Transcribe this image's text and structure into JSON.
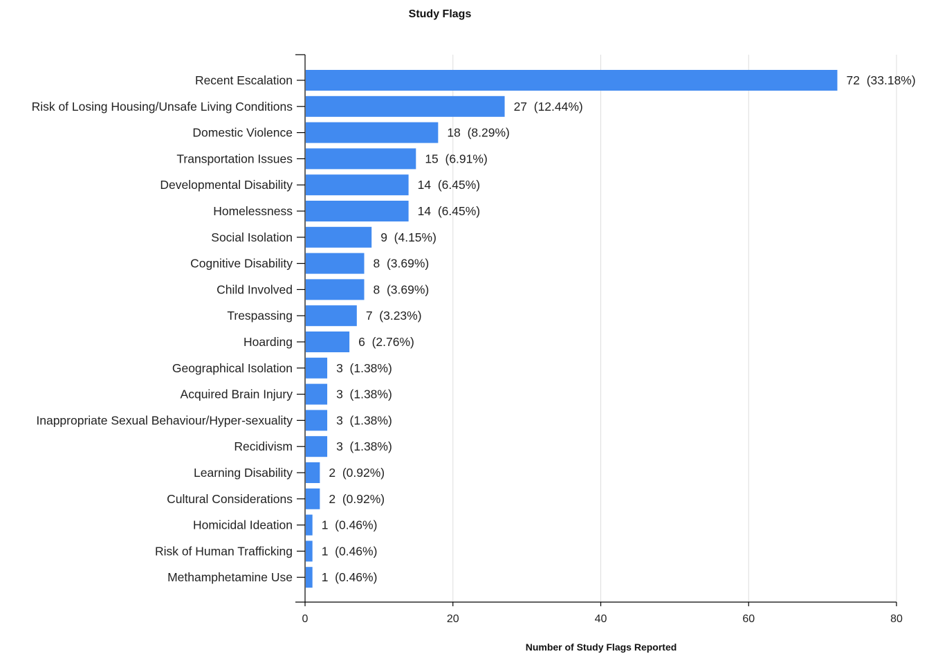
{
  "chart_data": {
    "type": "bar",
    "orientation": "horizontal",
    "title": "Study Flags",
    "xlabel": "Number of Study Flags Reported",
    "ylabel": "",
    "xlim": [
      0,
      80
    ],
    "x_ticks": [
      "0",
      "20",
      "40",
      "60",
      "80"
    ],
    "grid": "vertical",
    "bar_color": "#418af0",
    "categories": [
      "Recent Escalation",
      "Risk of Losing Housing/Unsafe Living Conditions",
      "Domestic Violence",
      "Transportation Issues",
      "Developmental Disability",
      "Homelessness",
      "Social Isolation",
      "Cognitive Disability",
      "Child Involved",
      "Trespassing",
      "Hoarding",
      "Geographical Isolation",
      "Acquired Brain Injury",
      "Inappropriate Sexual Behaviour/Hyper-sexuality",
      "Recidivism",
      "Learning Disability",
      "Cultural Considerations",
      "Homicidal Ideation",
      "Risk of Human Trafficking",
      "Methamphetamine Use"
    ],
    "values": [
      72,
      27,
      18,
      15,
      14,
      14,
      9,
      8,
      8,
      7,
      6,
      3,
      3,
      3,
      3,
      2,
      2,
      1,
      1,
      1
    ],
    "value_labels": [
      "72  (33.18%)",
      "27  (12.44%)",
      "18  (8.29%)",
      "15  (6.91%)",
      "14  (6.45%)",
      "14  (6.45%)",
      "9  (4.15%)",
      "8  (3.69%)",
      "8  (3.69%)",
      "7  (3.23%)",
      "6  (2.76%)",
      "3  (1.38%)",
      "3  (1.38%)",
      "3  (1.38%)",
      "3  (1.38%)",
      "2  (0.92%)",
      "2  (0.92%)",
      "1  (0.46%)",
      "1  (0.46%)",
      "1  (0.46%)"
    ]
  }
}
